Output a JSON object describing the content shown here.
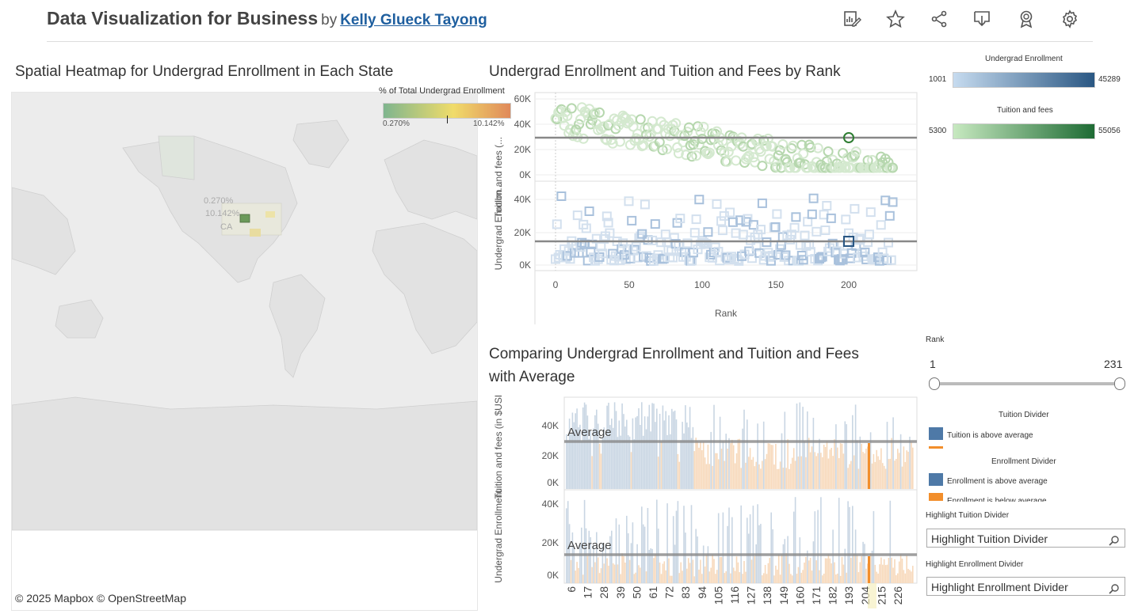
{
  "header": {
    "title": "Data Visualization for Business",
    "by": "by",
    "author": "Kelly Glueck Tayong",
    "toolbar_icons": [
      "edit-icon",
      "favorite-star-icon",
      "share-icon",
      "download-icon",
      "badge-icon",
      "settings-gear-icon"
    ]
  },
  "map": {
    "title": "Spatial Heatmap for Undergrad Enrollment in Each State",
    "legend_title": "% of Total Undergrad Enrollment",
    "legend_min": "0.270%",
    "legend_max": "10.142%",
    "label_1": "0.270%",
    "label_2": "10.142%",
    "label_3": "CA",
    "attribution": "© 2025 Mapbox  © OpenStreetMap",
    "colors": {
      "low": "#7fb58e",
      "mid": "#f0dc6a",
      "high": "#e0895a",
      "land": "#e6e6e6"
    }
  },
  "scatter": {
    "title": "Undergrad Enrollment and Tuition and Fees by Rank",
    "ylabel_top": "Tuition and fees (...",
    "ylabel_bottom": "Undergrad Enrollm...",
    "xlabel": "Rank",
    "yticks_top": [
      "60K",
      "40K",
      "20K",
      "0K"
    ],
    "yticks_bottom": [
      "40K",
      "20K",
      "0K"
    ],
    "xticks": [
      "0",
      "50",
      "100",
      "150",
      "200"
    ]
  },
  "compare": {
    "title_line1": "Comparing Undergrad Enrollment and Tuition and Fees",
    "title_line2": "with Average",
    "ylabel_top": "Tuition and fees (in $USD)",
    "ylabel_bottom": "Undergrad Enrollment",
    "yticks_top": [
      "40K",
      "20K",
      "0K"
    ],
    "yticks_bottom": [
      "40K",
      "20K",
      "0K"
    ],
    "avg_label": "Average",
    "xticks": [
      "6",
      "17",
      "28",
      "39",
      "50",
      "61",
      "72",
      "83",
      "94",
      "105",
      "116",
      "127",
      "138",
      "149",
      "160",
      "171",
      "182",
      "193",
      "204",
      "215",
      "226"
    ]
  },
  "legends": {
    "enroll_title": "Undergrad Enrollment",
    "enroll_min": "1001",
    "enroll_max": "45289",
    "tuition_title": "Tuition and fees",
    "tuition_min": "5300",
    "tuition_max": "55056",
    "rank_title": "Rank",
    "rank_min": "1",
    "rank_max": "231",
    "tuition_divider_title": "Tuition Divider",
    "tuition_above": "Tuition is above average",
    "enroll_divider_title": "Enrollment Divider",
    "enroll_above": "Enrollment is above average",
    "enroll_below": "Enrollment is below average",
    "highlight_tuition_title": "Highlight Tuition Divider",
    "highlight_tuition_placeholder": "Highlight Tuition Divider",
    "highlight_enroll_title": "Highlight Enrollment Divider",
    "highlight_enroll_placeholder": "Highlight Enrollment Divider",
    "colors": {
      "blue": "#4e79a7",
      "orange": "#f28e2b",
      "green_dark": "#1e6b34",
      "green_light": "#c7e9c0",
      "blue_dark": "#2a5783",
      "blue_light": "#c6dbef"
    }
  }
}
